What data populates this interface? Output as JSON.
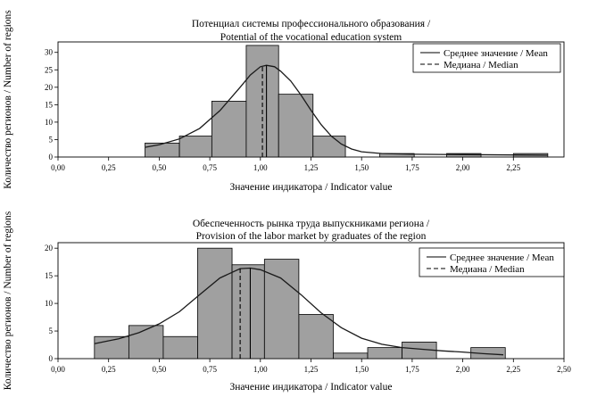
{
  "chart_data": [
    {
      "type": "bar",
      "title": [
        "Потенциал системы профессионального образования /",
        "Potential of the vocational education system"
      ],
      "xlabel": "Значение индикатора / Indicator value",
      "ylabel": "Количество регионов / Number of regions",
      "xlim": [
        0,
        2.5
      ],
      "ylim": [
        0,
        33
      ],
      "xticks": [
        0,
        0.25,
        0.5,
        0.75,
        1.0,
        1.25,
        1.5,
        1.75,
        2.0,
        2.25
      ],
      "xtick_labels": [
        "0,00",
        "0,25",
        "0,50",
        "0,75",
        "1,00",
        "1,25",
        "1,50",
        "1,75",
        "2,00",
        "2,25"
      ],
      "yticks": [
        0,
        5,
        10,
        15,
        20,
        25,
        30
      ],
      "bins": [
        {
          "x0": 0.43,
          "x1": 0.6,
          "count": 4
        },
        {
          "x0": 0.6,
          "x1": 0.76,
          "count": 6
        },
        {
          "x0": 0.76,
          "x1": 0.93,
          "count": 16
        },
        {
          "x0": 0.93,
          "x1": 1.09,
          "count": 32
        },
        {
          "x0": 1.09,
          "x1": 1.26,
          "count": 18
        },
        {
          "x0": 1.26,
          "x1": 1.42,
          "count": 6
        },
        {
          "x0": 1.42,
          "x1": 1.59,
          "count": 0
        },
        {
          "x0": 1.59,
          "x1": 1.76,
          "count": 1
        },
        {
          "x0": 1.76,
          "x1": 1.92,
          "count": 0
        },
        {
          "x0": 1.92,
          "x1": 2.09,
          "count": 1
        },
        {
          "x0": 2.09,
          "x1": 2.25,
          "count": 0
        },
        {
          "x0": 2.25,
          "x1": 2.42,
          "count": 1
        }
      ],
      "mean": 1.03,
      "median": 1.01,
      "density_curve": [
        [
          0.43,
          2.8
        ],
        [
          0.5,
          3.5
        ],
        [
          0.6,
          5.2
        ],
        [
          0.7,
          8.2
        ],
        [
          0.8,
          13.3
        ],
        [
          0.9,
          20.0
        ],
        [
          0.95,
          23.5
        ],
        [
          1.0,
          25.9
        ],
        [
          1.03,
          26.3
        ],
        [
          1.07,
          25.9
        ],
        [
          1.1,
          24.6
        ],
        [
          1.15,
          21.8
        ],
        [
          1.2,
          17.8
        ],
        [
          1.25,
          13.4
        ],
        [
          1.3,
          9.3
        ],
        [
          1.35,
          6.0
        ],
        [
          1.4,
          3.7
        ],
        [
          1.45,
          2.3
        ],
        [
          1.5,
          1.5
        ],
        [
          1.6,
          1.0
        ],
        [
          1.75,
          0.8
        ],
        [
          2.0,
          0.7
        ],
        [
          2.25,
          0.6
        ],
        [
          2.42,
          0.5
        ]
      ],
      "legend": [
        {
          "name": "Среднее значение / Mean",
          "style": "solid"
        },
        {
          "name": "Медиана / Median",
          "style": "dashed"
        }
      ],
      "legend_position": "top-right",
      "bar_color": "#a0a0a0",
      "grid": false
    },
    {
      "type": "bar",
      "title": [
        "Обеспеченность рынка труда выпускниками региона /",
        "Provision of the labor market by graduates of the region"
      ],
      "xlabel": "Значение индикатора / Indicator value",
      "ylabel": "Количество регионов / Number of regions",
      "xlim": [
        0,
        2.5
      ],
      "ylim": [
        0,
        21
      ],
      "xticks": [
        0,
        0.25,
        0.5,
        0.75,
        1.0,
        1.25,
        1.5,
        1.75,
        2.0,
        2.25,
        2.5
      ],
      "xtick_labels": [
        "0,00",
        "0,25",
        "0,50",
        "0,75",
        "1,00",
        "1,25",
        "1,50",
        "1,75",
        "2,00",
        "2,25",
        "2,50"
      ],
      "yticks": [
        0,
        5,
        10,
        15,
        20
      ],
      "bins": [
        {
          "x0": 0.18,
          "x1": 0.35,
          "count": 4
        },
        {
          "x0": 0.35,
          "x1": 0.52,
          "count": 6
        },
        {
          "x0": 0.52,
          "x1": 0.69,
          "count": 4
        },
        {
          "x0": 0.69,
          "x1": 0.86,
          "count": 20
        },
        {
          "x0": 0.86,
          "x1": 1.02,
          "count": 17
        },
        {
          "x0": 1.02,
          "x1": 1.19,
          "count": 18
        },
        {
          "x0": 1.19,
          "x1": 1.36,
          "count": 8
        },
        {
          "x0": 1.36,
          "x1": 1.53,
          "count": 1
        },
        {
          "x0": 1.53,
          "x1": 1.7,
          "count": 2
        },
        {
          "x0": 1.7,
          "x1": 1.87,
          "count": 3
        },
        {
          "x0": 1.87,
          "x1": 2.04,
          "count": 0
        },
        {
          "x0": 2.04,
          "x1": 2.21,
          "count": 2
        }
      ],
      "mean": 0.95,
      "median": 0.9,
      "density_curve": [
        [
          0.18,
          2.7
        ],
        [
          0.3,
          3.6
        ],
        [
          0.4,
          4.7
        ],
        [
          0.5,
          6.3
        ],
        [
          0.6,
          8.5
        ],
        [
          0.7,
          11.6
        ],
        [
          0.8,
          14.6
        ],
        [
          0.9,
          16.3
        ],
        [
          0.95,
          16.4
        ],
        [
          1.0,
          16.1
        ],
        [
          1.1,
          14.6
        ],
        [
          1.2,
          11.6
        ],
        [
          1.3,
          8.3
        ],
        [
          1.4,
          5.6
        ],
        [
          1.5,
          3.7
        ],
        [
          1.6,
          2.6
        ],
        [
          1.7,
          2.0
        ],
        [
          1.8,
          1.7
        ],
        [
          1.9,
          1.4
        ],
        [
          2.0,
          1.2
        ],
        [
          2.1,
          0.9
        ],
        [
          2.2,
          0.7
        ]
      ],
      "legend": [
        {
          "name": "Среднее значение / Mean",
          "style": "solid"
        },
        {
          "name": "Медиана / Median",
          "style": "dashed"
        }
      ],
      "legend_position": "top-right",
      "bar_color": "#a0a0a0",
      "grid": false
    }
  ]
}
